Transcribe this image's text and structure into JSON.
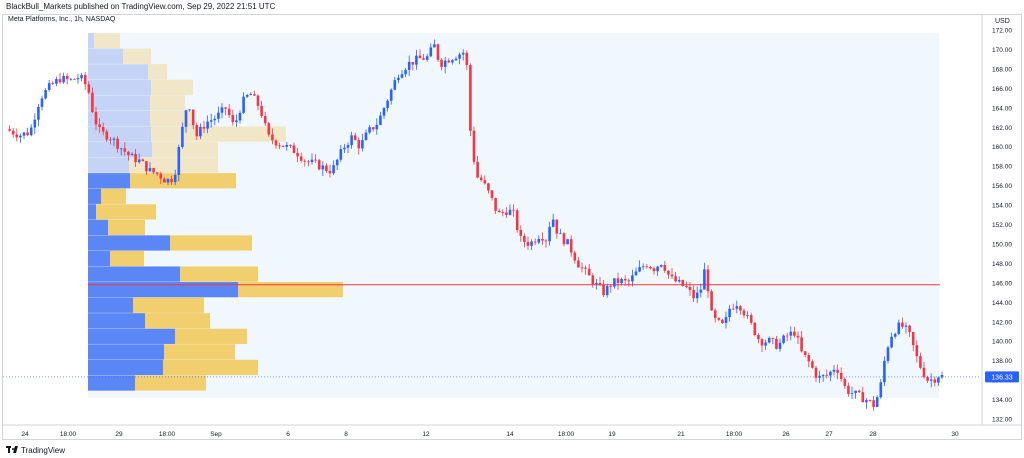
{
  "header": {
    "publisher_line": "BlackBull_Markets published on TradingView.com, Sep 29, 2022 21:51 UTC"
  },
  "footer": {
    "brand": "TradingView"
  },
  "chart_data": {
    "type": "candlestick",
    "title": "Meta Platforms, Inc., 1h, NASDAQ",
    "currency": "USD",
    "last_price_label": "136.33",
    "last_price": 136.33,
    "point_of_control": 145.8,
    "y_range": [
      132,
      172
    ],
    "y_ticks": [
      "132.00",
      "134.00",
      "136.00",
      "138.00",
      "140.00",
      "142.00",
      "144.00",
      "146.00",
      "148.00",
      "150.00",
      "152.00",
      "154.00",
      "156.00",
      "158.00",
      "160.00",
      "162.00",
      "164.00",
      "166.00",
      "168.00",
      "170.00",
      "172.00"
    ],
    "x_ticks": [
      {
        "label": "24",
        "t": 25
      },
      {
        "label": "18:00",
        "t": 68
      },
      {
        "label": "29",
        "t": 119
      },
      {
        "label": "18:00",
        "t": 167
      },
      {
        "label": "Sep",
        "t": 216
      },
      {
        "label": "6",
        "t": 288
      },
      {
        "label": "8",
        "t": 346
      },
      {
        "label": "12",
        "t": 426
      },
      {
        "label": "14",
        "t": 510
      },
      {
        "label": "18:00",
        "t": 566
      },
      {
        "label": "19",
        "t": 612
      },
      {
        "label": "21",
        "t": 681
      },
      {
        "label": "18:00",
        "t": 734
      },
      {
        "label": "26",
        "t": 786
      },
      {
        "label": "27",
        "t": 829
      },
      {
        "label": "28",
        "t": 873
      },
      {
        "label": "30",
        "t": 955
      }
    ],
    "close_path": [
      [
        6,
        161.8
      ],
      [
        20,
        161.2
      ],
      [
        30,
        161.5
      ],
      [
        40,
        165
      ],
      [
        50,
        166.2
      ],
      [
        60,
        167
      ],
      [
        70,
        166.8
      ],
      [
        80,
        167.2
      ],
      [
        88,
        166
      ],
      [
        94,
        163
      ],
      [
        100,
        161.5
      ],
      [
        110,
        161
      ],
      [
        120,
        160
      ],
      [
        130,
        159
      ],
      [
        140,
        158.5
      ],
      [
        150,
        157.5
      ],
      [
        158,
        157.2
      ],
      [
        166,
        156.5
      ],
      [
        174,
        156.8
      ],
      [
        180,
        160.5
      ],
      [
        188,
        165
      ],
      [
        196,
        161
      ],
      [
        206,
        162.5
      ],
      [
        216,
        163
      ],
      [
        226,
        164
      ],
      [
        234,
        162
      ],
      [
        242,
        164.5
      ],
      [
        250,
        165.5
      ],
      [
        260,
        164
      ],
      [
        268,
        161
      ],
      [
        276,
        160.5
      ],
      [
        286,
        160
      ],
      [
        296,
        159.5
      ],
      [
        306,
        158.5
      ],
      [
        316,
        158.2
      ],
      [
        324,
        157.8
      ],
      [
        332,
        157.5
      ],
      [
        344,
        160
      ],
      [
        352,
        161
      ],
      [
        360,
        160
      ],
      [
        368,
        161.5
      ],
      [
        378,
        162.5
      ],
      [
        388,
        165
      ],
      [
        398,
        167.5
      ],
      [
        408,
        168.5
      ],
      [
        418,
        169
      ],
      [
        428,
        169.2
      ],
      [
        434,
        170.5
      ],
      [
        440,
        168.5
      ],
      [
        448,
        169
      ],
      [
        458,
        169.5
      ],
      [
        466,
        169.8
      ],
      [
        470,
        162
      ],
      [
        476,
        157
      ],
      [
        482,
        156.5
      ],
      [
        490,
        155
      ],
      [
        498,
        153
      ],
      [
        508,
        153.5
      ],
      [
        514,
        153
      ],
      [
        520,
        150.5
      ],
      [
        530,
        150
      ],
      [
        540,
        151
      ],
      [
        546,
        150.5
      ],
      [
        552,
        153
      ],
      [
        558,
        151
      ],
      [
        568,
        150
      ],
      [
        578,
        148
      ],
      [
        586,
        147
      ],
      [
        596,
        145.8
      ],
      [
        604,
        145
      ],
      [
        612,
        146
      ],
      [
        620,
        146.2
      ],
      [
        628,
        146
      ],
      [
        636,
        147
      ],
      [
        646,
        148
      ],
      [
        654,
        147.5
      ],
      [
        662,
        148.2
      ],
      [
        670,
        146.5
      ],
      [
        678,
        146
      ],
      [
        686,
        145.5
      ],
      [
        694,
        144.5
      ],
      [
        700,
        145
      ],
      [
        706,
        148
      ],
      [
        710,
        143
      ],
      [
        716,
        142
      ],
      [
        724,
        141.5
      ],
      [
        730,
        143.5
      ],
      [
        738,
        144
      ],
      [
        744,
        143
      ],
      [
        752,
        141.5
      ],
      [
        760,
        140
      ],
      [
        770,
        140
      ],
      [
        778,
        139.5
      ],
      [
        786,
        140.5
      ],
      [
        796,
        141
      ],
      [
        800,
        139
      ],
      [
        808,
        138
      ],
      [
        818,
        136.2
      ],
      [
        828,
        136.5
      ],
      [
        836,
        137.5
      ],
      [
        846,
        135
      ],
      [
        856,
        134.5
      ],
      [
        866,
        134
      ],
      [
        874,
        133.4
      ],
      [
        880,
        135
      ],
      [
        886,
        139
      ],
      [
        892,
        140.8
      ],
      [
        898,
        141.5
      ],
      [
        904,
        141.5
      ],
      [
        910,
        140.5
      ],
      [
        916,
        138.5
      ],
      [
        922,
        137
      ],
      [
        928,
        136
      ],
      [
        934,
        136.1
      ],
      [
        938,
        136.5
      ],
      [
        944,
        136.33
      ]
    ],
    "volume_profile": [
      {
        "price": 170.9,
        "up": 6,
        "down": 26
      },
      {
        "price": 169.3,
        "up": 35,
        "down": 28
      },
      {
        "price": 167.7,
        "up": 60,
        "down": 19
      },
      {
        "price": 166.1,
        "up": 63,
        "down": 42
      },
      {
        "price": 164.5,
        "up": 62,
        "down": 35
      },
      {
        "price": 162.9,
        "up": 62,
        "down": 43
      },
      {
        "price": 161.3,
        "up": 63,
        "down": 135
      },
      {
        "price": 159.7,
        "up": 64,
        "down": 66
      },
      {
        "price": 158.1,
        "up": 41,
        "down": 89
      },
      {
        "price": 156.5,
        "up": 42,
        "down": 106
      },
      {
        "price": 154.9,
        "up": 13,
        "down": 25
      },
      {
        "price": 153.3,
        "up": 8,
        "down": 60
      },
      {
        "price": 151.7,
        "up": 20,
        "down": 37
      },
      {
        "price": 150.1,
        "up": 82,
        "down": 82
      },
      {
        "price": 148.5,
        "up": 22,
        "down": 34
      },
      {
        "price": 146.9,
        "up": 92,
        "down": 78
      },
      {
        "price": 145.3,
        "up": 150,
        "down": 105
      },
      {
        "price": 143.7,
        "up": 45,
        "down": 71
      },
      {
        "price": 142.1,
        "up": 57,
        "down": 65
      },
      {
        "price": 140.5,
        "up": 87,
        "down": 72
      },
      {
        "price": 138.9,
        "up": 76,
        "down": 71
      },
      {
        "price": 137.3,
        "up": 75,
        "down": 95
      },
      {
        "price": 135.7,
        "up": 47,
        "down": 71
      }
    ]
  }
}
